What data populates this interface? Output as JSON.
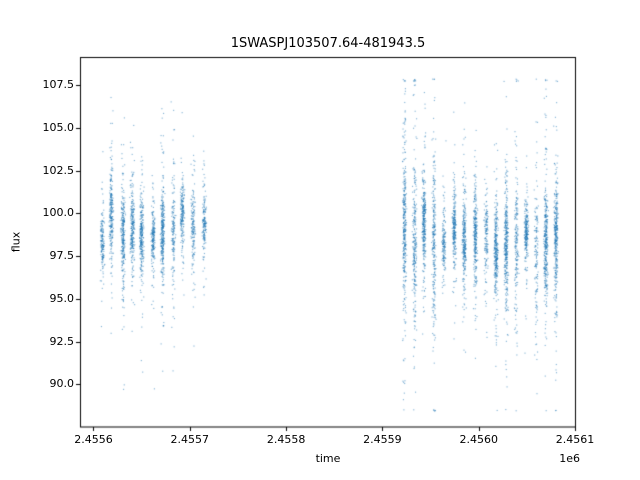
{
  "figure": {
    "background": "#ffffff",
    "spine_color": "#000000",
    "text_color": "#000000"
  },
  "chart_data": {
    "type": "scatter",
    "title": "1SWASPJ103507.64-481943.5",
    "xlabel": "time",
    "ylabel": "flux",
    "offset_text": "1e6",
    "marker_color": "#1f77b4",
    "marker_alpha": 0.6,
    "marker_size_px": 1.1,
    "grid": false,
    "legend": "none",
    "xlim": [
      2455586,
      2456101
    ],
    "ylim": [
      87.5,
      109.1
    ],
    "xticks": [
      {
        "value": 2455600,
        "label": "2.4556"
      },
      {
        "value": 2455700,
        "label": "2.4557"
      },
      {
        "value": 2455800,
        "label": "2.4558"
      },
      {
        "value": 2455900,
        "label": "2.4559"
      },
      {
        "value": 2456000,
        "label": "2.4560"
      },
      {
        "value": 2456100,
        "label": "2.4561"
      }
    ],
    "yticks": [
      {
        "value": 90.0,
        "label": "90.0"
      },
      {
        "value": 92.5,
        "label": "92.5"
      },
      {
        "value": 95.0,
        "label": "95.0"
      },
      {
        "value": 97.5,
        "label": "97.5"
      },
      {
        "value": 100.0,
        "label": "100.0"
      },
      {
        "value": 102.5,
        "label": "102.5"
      },
      {
        "value": 105.0,
        "label": "105.0"
      },
      {
        "value": 107.5,
        "label": "107.5"
      }
    ],
    "seed": 20,
    "clusters": [
      {
        "x_start": 2455603,
        "x_end": 2455719,
        "nights": 11,
        "points_per_night": 230,
        "night_jitter": 2.0,
        "half_width": 1.9,
        "flux_mean": 98.9,
        "mean_sd": 0.5,
        "core_frac": 0.62,
        "core_sd": 0.85,
        "mid_frac": 0.3,
        "mid_sd": 1.7,
        "tail_sd": 3.1,
        "tall_prob": 0.3,
        "tall_boost": 1.75,
        "flux_min": 89.7,
        "flux_max": 108.2
      },
      {
        "x_start": 2455916,
        "x_end": 2456086,
        "nights": 16,
        "points_per_night": 250,
        "night_jitter": 2.0,
        "half_width": 1.9,
        "flux_mean": 98.6,
        "mean_sd": 0.55,
        "core_frac": 0.6,
        "core_sd": 0.9,
        "mid_frac": 0.3,
        "mid_sd": 1.8,
        "tail_sd": 3.3,
        "tall_prob": 0.35,
        "tall_boost": 1.7,
        "flux_min": 88.4,
        "flux_max": 107.9
      }
    ]
  }
}
